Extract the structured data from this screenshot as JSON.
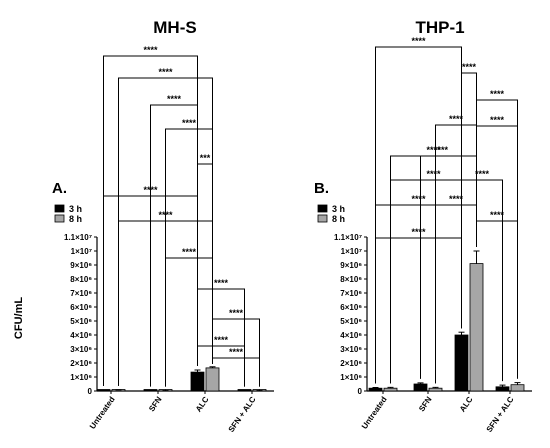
{
  "figure": {
    "ylabel": "CFU/mL",
    "colors": {
      "3 h": "#000000",
      "8 h": "#a6a6a6"
    }
  },
  "chart_data": [
    {
      "type": "bar",
      "title": "MH-S",
      "panel_label": "A.",
      "ylabel": "CFU/mL",
      "ylim": [
        0,
        11000000
      ],
      "y_ticks": [
        0,
        1000000,
        2000000,
        3000000,
        4000000,
        5000000,
        6000000,
        7000000,
        8000000,
        9000000,
        10000000,
        11000000
      ],
      "y_tick_labels": [
        "0",
        "1×10⁶",
        "2×10⁶",
        "3×10⁶",
        "4×10⁶",
        "5×10⁶",
        "6×10⁶",
        "7×10⁶",
        "8×10⁶",
        "9×10⁶",
        "1×10⁷",
        "1.1×10⁷"
      ],
      "categories": [
        "Untreated",
        "SFN",
        "ALC",
        "SFN + ALC"
      ],
      "series": [
        {
          "name": "3 h",
          "values": [
            50000,
            20000,
            1350000,
            20000
          ],
          "errors": [
            20000,
            10000,
            150000,
            10000
          ]
        },
        {
          "name": "8 h",
          "values": [
            60000,
            20000,
            1650000,
            20000
          ],
          "errors": [
            20000,
            10000,
            80000,
            10000
          ]
        }
      ],
      "significance": [
        {
          "from": [
            0,
            0
          ],
          "to": [
            2,
            0
          ],
          "label": "****"
        },
        {
          "from": [
            0,
            1
          ],
          "to": [
            2,
            1
          ],
          "label": "****"
        },
        {
          "from": [
            1,
            0
          ],
          "to": [
            2,
            0
          ],
          "label": "****"
        },
        {
          "from": [
            1,
            1
          ],
          "to": [
            2,
            1
          ],
          "label": "****"
        },
        {
          "from": [
            2,
            0
          ],
          "to": [
            2,
            1
          ],
          "label": "***"
        },
        {
          "from": [
            0,
            0
          ],
          "to": [
            2,
            0
          ],
          "label": "****"
        },
        {
          "from": [
            0,
            1
          ],
          "to": [
            2,
            1
          ],
          "label": "****"
        },
        {
          "from": [
            1,
            1
          ],
          "to": [
            2,
            1
          ],
          "label": "****"
        },
        {
          "from": [
            2,
            0
          ],
          "to": [
            3,
            0
          ],
          "label": "****"
        },
        {
          "from": [
            2,
            1
          ],
          "to": [
            3,
            1
          ],
          "label": "****"
        },
        {
          "from": [
            2,
            0
          ],
          "to": [
            3,
            0
          ],
          "label": "****"
        },
        {
          "from": [
            2,
            1
          ],
          "to": [
            3,
            1
          ],
          "label": "****"
        }
      ],
      "legend": [
        "3 h",
        "8 h"
      ]
    },
    {
      "type": "bar",
      "title": "THP-1",
      "panel_label": "B.",
      "ylim": [
        0,
        11000000
      ],
      "y_ticks": [
        0,
        1000000,
        2000000,
        3000000,
        4000000,
        5000000,
        6000000,
        7000000,
        8000000,
        9000000,
        10000000,
        11000000
      ],
      "y_tick_labels": [
        "0",
        "1×10⁶",
        "2×10⁶",
        "3×10⁶",
        "4×10⁶",
        "5×10⁶",
        "6×10⁶",
        "7×10⁶",
        "8×10⁶",
        "9×10⁶",
        "1×10⁷",
        "1.1×10⁷"
      ],
      "categories": [
        "Untreated",
        "SFN",
        "ALC",
        "SFN + ALC"
      ],
      "series": [
        {
          "name": "3 h",
          "values": [
            200000,
            500000,
            4000000,
            300000
          ],
          "errors": [
            50000,
            80000,
            200000,
            120000
          ]
        },
        {
          "name": "8 h",
          "values": [
            200000,
            200000,
            9100000,
            450000
          ],
          "errors": [
            60000,
            60000,
            900000,
            150000
          ]
        }
      ],
      "significance": [
        {
          "from": [
            0,
            0
          ],
          "to": [
            2,
            0
          ],
          "label": "****"
        },
        {
          "from": [
            2,
            0
          ],
          "to": [
            2,
            1
          ],
          "label": "****"
        },
        {
          "from": [
            2,
            1
          ],
          "to": [
            3,
            1
          ],
          "label": "****"
        },
        {
          "from": [
            1,
            1
          ],
          "to": [
            2,
            1
          ],
          "label": "****"
        },
        {
          "from": [
            1,
            0
          ],
          "to": [
            2,
            0
          ],
          "label": "****"
        },
        {
          "from": [
            2,
            0
          ],
          "to": [
            3,
            0
          ],
          "label": "****"
        },
        {
          "from": [
            1,
            1
          ],
          "to": [
            2,
            1
          ],
          "label": "****"
        },
        {
          "from": [
            2,
            1
          ],
          "to": [
            3,
            1
          ],
          "label": "****"
        },
        {
          "from": [
            0,
            0
          ],
          "to": [
            2,
            0
          ],
          "label": "****"
        },
        {
          "from": [
            2,
            1
          ],
          "to": [
            3,
            1
          ],
          "label": "****"
        },
        {
          "from": [
            0,
            1
          ],
          "to": [
            2,
            1
          ],
          "label": "****"
        },
        {
          "from": [
            0,
            1
          ],
          "to": [
            2,
            1
          ],
          "label": "****"
        },
        {
          "from": [
            0,
            0
          ],
          "to": [
            2,
            0
          ],
          "label": "****"
        }
      ],
      "legend": [
        "3 h",
        "8 h"
      ]
    }
  ]
}
